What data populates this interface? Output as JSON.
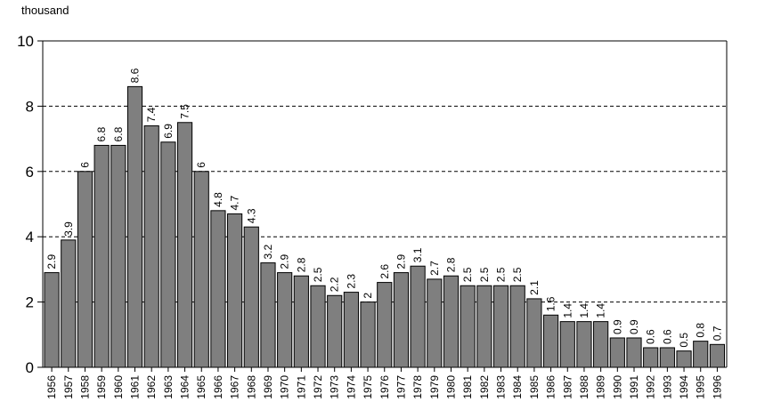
{
  "chart_data": {
    "type": "bar",
    "title": "",
    "unit_label": "thousand",
    "xlabel": "",
    "ylabel": "",
    "ylim": [
      0,
      10
    ],
    "yticks": [
      "0",
      "2",
      "4",
      "6",
      "8",
      "10"
    ],
    "grid": true,
    "categories": [
      "1956",
      "1957",
      "1958",
      "1959",
      "1960",
      "1961",
      "1962",
      "1963",
      "1964",
      "1965",
      "1966",
      "1967",
      "1968",
      "1969",
      "1970",
      "1971",
      "1972",
      "1973",
      "1974",
      "1975",
      "1976",
      "1977",
      "1978",
      "1979",
      "1980",
      "1981",
      "1982",
      "1983",
      "1984",
      "1985",
      "1986",
      "1987",
      "1988",
      "1989",
      "1990",
      "1991",
      "1992",
      "1993",
      "1994",
      "1995",
      "1996"
    ],
    "values": [
      2.9,
      3.9,
      6,
      6.8,
      6.8,
      8.6,
      7.4,
      6.9,
      7.5,
      6,
      4.8,
      4.7,
      4.3,
      3.2,
      2.9,
      2.8,
      2.5,
      2.2,
      2.3,
      2,
      2.6,
      2.9,
      3.1,
      2.7,
      2.8,
      2.5,
      2.5,
      2.5,
      2.5,
      2.1,
      1.6,
      1.4,
      1.4,
      1.4,
      0.9,
      0.9,
      0.6,
      0.6,
      0.5,
      0.8,
      0.7
    ],
    "data_labels": [
      "2.9",
      "3.9",
      "6",
      "6.8",
      "6.8",
      "8.6",
      "7.4",
      "6.9",
      "7.5",
      "6",
      "4.8",
      "4.7",
      "4.3",
      "3.2",
      "2.9",
      "2.8",
      "2.5",
      "2.2",
      "2.3",
      "2",
      "2.6",
      "2.9",
      "3.1",
      "2.7",
      "2.8",
      "2.5",
      "2.5",
      "2.5",
      "2.5",
      "2.1",
      "1.6",
      "1.4",
      "1.4",
      "1.4",
      "0.9",
      "0.9",
      "0.6",
      "0.6",
      "0.5",
      "0.8",
      "0.7"
    ],
    "colors": {
      "bar_fill": "#7f7f7f",
      "bar_stroke": "#000000",
      "grid": "#000000",
      "axis": "#000000"
    }
  }
}
